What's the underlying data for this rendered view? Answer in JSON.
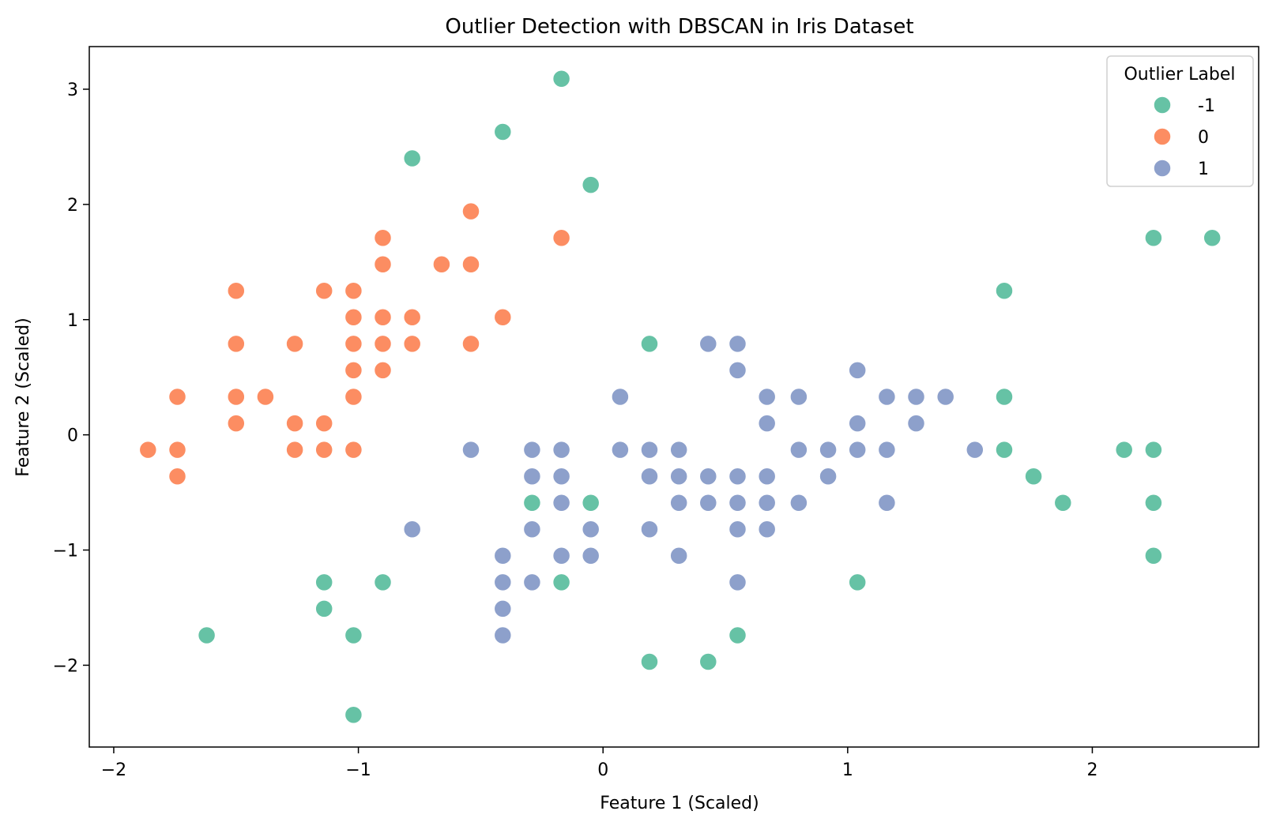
{
  "chart_data": {
    "type": "scatter",
    "title": "Outlier Detection with DBSCAN in Iris Dataset",
    "xlabel": "Feature 1 (Scaled)",
    "ylabel": "Feature 2 (Scaled)",
    "xlim": [
      -2.1,
      2.68
    ],
    "ylim": [
      -2.71,
      3.37
    ],
    "xticks": [
      -2,
      -1,
      0,
      1,
      2
    ],
    "yticks": [
      -2,
      -1,
      0,
      1,
      2,
      3
    ],
    "xtick_labels": [
      "−2",
      "−1",
      "0",
      "1",
      "2"
    ],
    "ytick_labels": [
      "−2",
      "−1",
      "0",
      "1",
      "2",
      "3"
    ],
    "grid": false,
    "legend": {
      "title": "Outlier Label",
      "position": "top-right"
    },
    "series": [
      {
        "name": "-1",
        "color": "#66c2a5",
        "points": [
          [
            -0.17,
            3.09
          ],
          [
            -0.41,
            2.63
          ],
          [
            -0.78,
            2.4
          ],
          [
            -0.05,
            2.17
          ],
          [
            2.25,
            1.71
          ],
          [
            2.49,
            1.71
          ],
          [
            1.64,
            1.25
          ],
          [
            0.19,
            0.79
          ],
          [
            1.64,
            0.33
          ],
          [
            1.64,
            -0.13
          ],
          [
            2.13,
            -0.13
          ],
          [
            2.25,
            -0.13
          ],
          [
            1.76,
            -0.36
          ],
          [
            1.88,
            -0.59
          ],
          [
            2.25,
            -0.59
          ],
          [
            2.25,
            -1.05
          ],
          [
            -0.29,
            -0.59
          ],
          [
            -0.05,
            -0.59
          ],
          [
            -0.17,
            -1.28
          ],
          [
            -0.9,
            -1.28
          ],
          [
            -1.14,
            -1.28
          ],
          [
            -1.14,
            -1.51
          ],
          [
            -1.62,
            -1.74
          ],
          [
            -1.02,
            -1.74
          ],
          [
            -1.02,
            -2.43
          ],
          [
            0.19,
            -1.97
          ],
          [
            0.43,
            -1.97
          ],
          [
            0.55,
            -1.74
          ],
          [
            1.04,
            -1.28
          ]
        ]
      },
      {
        "name": "0",
        "color": "#fc8d62",
        "points": [
          [
            -0.54,
            1.94
          ],
          [
            -0.17,
            1.71
          ],
          [
            -0.9,
            1.71
          ],
          [
            -0.9,
            1.48
          ],
          [
            -0.66,
            1.48
          ],
          [
            -0.54,
            1.48
          ],
          [
            -1.5,
            1.25
          ],
          [
            -1.14,
            1.25
          ],
          [
            -1.02,
            1.25
          ],
          [
            -1.02,
            1.02
          ],
          [
            -0.9,
            1.02
          ],
          [
            -0.78,
            1.02
          ],
          [
            -0.41,
            1.02
          ],
          [
            -1.5,
            0.79
          ],
          [
            -1.26,
            0.79
          ],
          [
            -1.02,
            0.79
          ],
          [
            -0.9,
            0.79
          ],
          [
            -0.78,
            0.79
          ],
          [
            -0.54,
            0.79
          ],
          [
            -1.02,
            0.56
          ],
          [
            -0.9,
            0.56
          ],
          [
            -1.74,
            0.33
          ],
          [
            -1.5,
            0.33
          ],
          [
            -1.38,
            0.33
          ],
          [
            -1.02,
            0.33
          ],
          [
            -1.5,
            0.1
          ],
          [
            -1.26,
            0.1
          ],
          [
            -1.14,
            0.1
          ],
          [
            -1.86,
            -0.13
          ],
          [
            -1.74,
            -0.13
          ],
          [
            -1.26,
            -0.13
          ],
          [
            -1.14,
            -0.13
          ],
          [
            -1.02,
            -0.13
          ],
          [
            -1.74,
            -0.36
          ]
        ]
      },
      {
        "name": "1",
        "color": "#8da0cb",
        "points": [
          [
            0.43,
            0.79
          ],
          [
            0.55,
            0.79
          ],
          [
            0.55,
            0.56
          ],
          [
            1.04,
            0.56
          ],
          [
            0.07,
            0.33
          ],
          [
            0.67,
            0.33
          ],
          [
            0.8,
            0.33
          ],
          [
            1.16,
            0.33
          ],
          [
            1.28,
            0.33
          ],
          [
            1.4,
            0.33
          ],
          [
            0.67,
            0.1
          ],
          [
            1.04,
            0.1
          ],
          [
            1.28,
            0.1
          ],
          [
            -0.54,
            -0.13
          ],
          [
            -0.29,
            -0.13
          ],
          [
            -0.17,
            -0.13
          ],
          [
            0.07,
            -0.13
          ],
          [
            0.19,
            -0.13
          ],
          [
            0.31,
            -0.13
          ],
          [
            0.8,
            -0.13
          ],
          [
            0.92,
            -0.13
          ],
          [
            1.04,
            -0.13
          ],
          [
            1.16,
            -0.13
          ],
          [
            1.52,
            -0.13
          ],
          [
            -0.29,
            -0.36
          ],
          [
            -0.17,
            -0.36
          ],
          [
            0.19,
            -0.36
          ],
          [
            0.31,
            -0.36
          ],
          [
            0.43,
            -0.36
          ],
          [
            0.55,
            -0.36
          ],
          [
            0.67,
            -0.36
          ],
          [
            0.92,
            -0.36
          ],
          [
            -0.17,
            -0.59
          ],
          [
            0.31,
            -0.59
          ],
          [
            0.43,
            -0.59
          ],
          [
            0.55,
            -0.59
          ],
          [
            0.67,
            -0.59
          ],
          [
            0.8,
            -0.59
          ],
          [
            1.16,
            -0.59
          ],
          [
            -0.78,
            -0.82
          ],
          [
            -0.29,
            -0.82
          ],
          [
            -0.05,
            -0.82
          ],
          [
            0.19,
            -0.82
          ],
          [
            0.55,
            -0.82
          ],
          [
            0.67,
            -0.82
          ],
          [
            -0.41,
            -1.05
          ],
          [
            -0.17,
            -1.05
          ],
          [
            -0.05,
            -1.05
          ],
          [
            0.31,
            -1.05
          ],
          [
            -0.41,
            -1.28
          ],
          [
            -0.29,
            -1.28
          ],
          [
            0.55,
            -1.28
          ],
          [
            -0.41,
            -1.51
          ],
          [
            -0.41,
            -1.74
          ]
        ]
      }
    ]
  }
}
